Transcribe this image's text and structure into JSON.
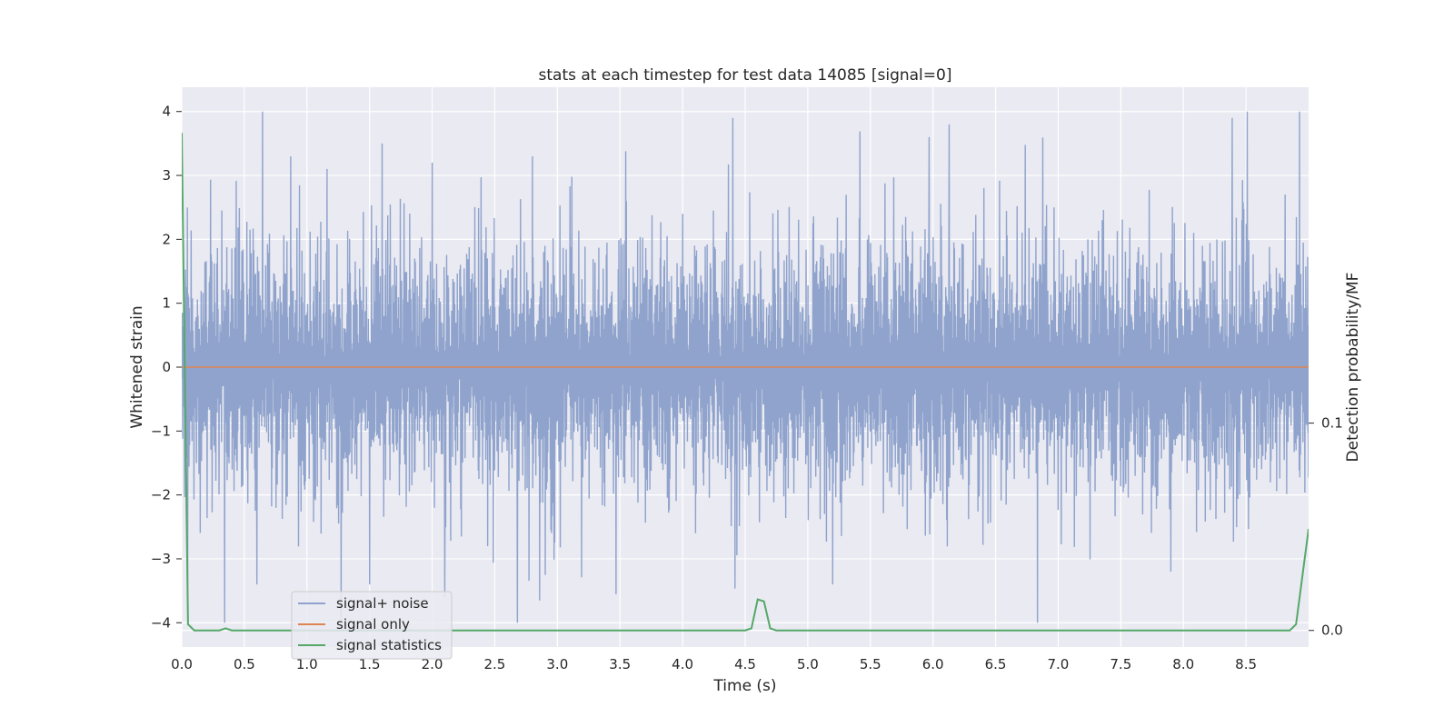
{
  "chart_data": {
    "type": "line",
    "title": "stats at each timestep for test data 14085 [signal=0]",
    "xlabel": "Time (s)",
    "ylabel": "Whitened strain",
    "y2label": "Detection probability/MF",
    "xlim": [
      0.0,
      9.0
    ],
    "ylim": [
      -4.38,
      4.38
    ],
    "y2lim": [
      -0.008,
      0.262
    ],
    "x_ticks": [
      "0.0",
      "0.5",
      "1.0",
      "1.5",
      "2.0",
      "2.5",
      "3.0",
      "3.5",
      "4.0",
      "4.5",
      "5.0",
      "5.5",
      "6.0",
      "6.5",
      "7.0",
      "7.5",
      "8.0",
      "8.5"
    ],
    "y_ticks": [
      "−4",
      "−3",
      "−2",
      "−1",
      "0",
      "1",
      "2",
      "3",
      "4"
    ],
    "y2_ticks": [
      "0.0",
      "0.1"
    ],
    "grid": true,
    "legend_position": "lower-left",
    "series": [
      {
        "name": "signal+ noise",
        "color": "#8fa3cc",
        "axis": "left",
        "description_samples": {
          "x_range": [
            0.0,
            9.0
          ],
          "envelope_upper_typical": 1.9,
          "envelope_lower_typical": -1.9,
          "max_value": 4.0,
          "min_value": -4.0
        },
        "spikes": [
          {
            "x": 0.87,
            "y": 3.3
          },
          {
            "x": 1.6,
            "y": 3.5
          },
          {
            "x": 2.0,
            "y": 3.2
          },
          {
            "x": 2.8,
            "y": 3.3
          },
          {
            "x": 4.4,
            "y": 3.9
          },
          {
            "x": 5.97,
            "y": 3.6
          },
          {
            "x": 6.13,
            "y": 3.8
          },
          {
            "x": 8.39,
            "y": 3.9
          },
          {
            "x": 8.51,
            "y": 4.0
          },
          {
            "x": 0.6,
            "y": -3.4
          },
          {
            "x": 1.5,
            "y": -3.4
          },
          {
            "x": 2.1,
            "y": -3.6
          },
          {
            "x": 2.68,
            "y": -4.0
          },
          {
            "x": 5.2,
            "y": -3.4
          },
          {
            "x": 7.9,
            "y": -3.2
          }
        ]
      },
      {
        "name": "signal only",
        "color": "#dd8452",
        "axis": "left",
        "x": [
          0.0,
          9.0
        ],
        "y": [
          0.0,
          0.0
        ]
      },
      {
        "name": "signal statistics",
        "color": "#55a868",
        "axis": "right",
        "x": [
          0.0,
          0.05,
          0.1,
          0.15,
          0.2,
          0.25,
          0.3,
          0.35,
          0.4,
          0.5,
          1.0,
          2.0,
          3.0,
          4.0,
          4.5,
          4.55,
          4.6,
          4.65,
          4.7,
          4.75,
          4.8,
          5.0,
          6.0,
          7.0,
          7.5,
          7.9,
          8.0,
          8.5,
          8.85,
          8.9,
          9.0
        ],
        "y": [
          0.24,
          0.003,
          0.0,
          0.0,
          0.0,
          0.0,
          0.0,
          0.001,
          0.0,
          0.0,
          0.0,
          0.0,
          0.0,
          0.0,
          0.0,
          0.001,
          0.015,
          0.014,
          0.001,
          0.0,
          0.0,
          0.0,
          0.0,
          0.0,
          0.0,
          0.0,
          0.0,
          0.0,
          0.0,
          0.003,
          0.049
        ]
      }
    ]
  }
}
